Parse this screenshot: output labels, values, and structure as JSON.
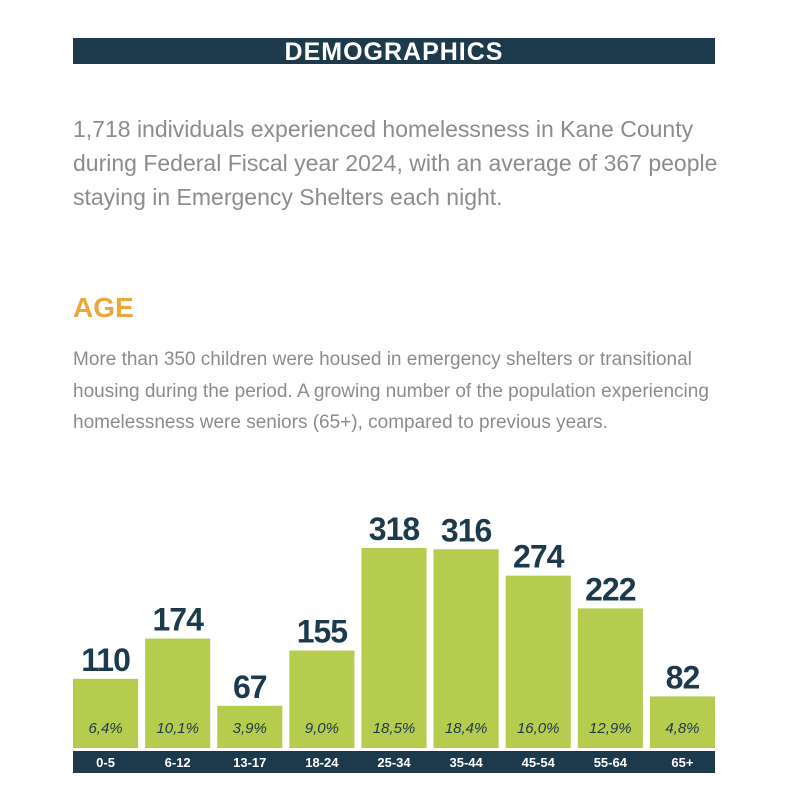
{
  "title": "DEMOGRAPHICS",
  "intro": "1,718 individuals experienced homelessness in Kane County during Federal Fiscal year 2024, with an average of 367 people staying in Emergency Shelters each night.",
  "section_title": "AGE",
  "section_text": "More than 350 children were housed in emergency shelters or transitional housing during the period.  A growing number of the population experiencing homelessness were seniors (65+), compared to previous years.",
  "chart_data": {
    "type": "bar",
    "color": "#b6cc4e",
    "categories": [
      "0-5",
      "6-12",
      "13-17",
      "18-24",
      "25-34",
      "35-44",
      "45-54",
      "55-64",
      "65+"
    ],
    "values": [
      110,
      174,
      67,
      155,
      318,
      316,
      274,
      222,
      82
    ],
    "percentages": [
      6.4,
      10.1,
      3.9,
      9.0,
      18.5,
      18.4,
      16.0,
      12.9,
      4.8
    ],
    "percentage_labels": [
      "6,4%",
      "10,1%",
      "3,9%",
      "9,0%",
      "18,5%",
      "18,4%",
      "16,0%",
      "12,9%",
      "4,8%"
    ]
  }
}
